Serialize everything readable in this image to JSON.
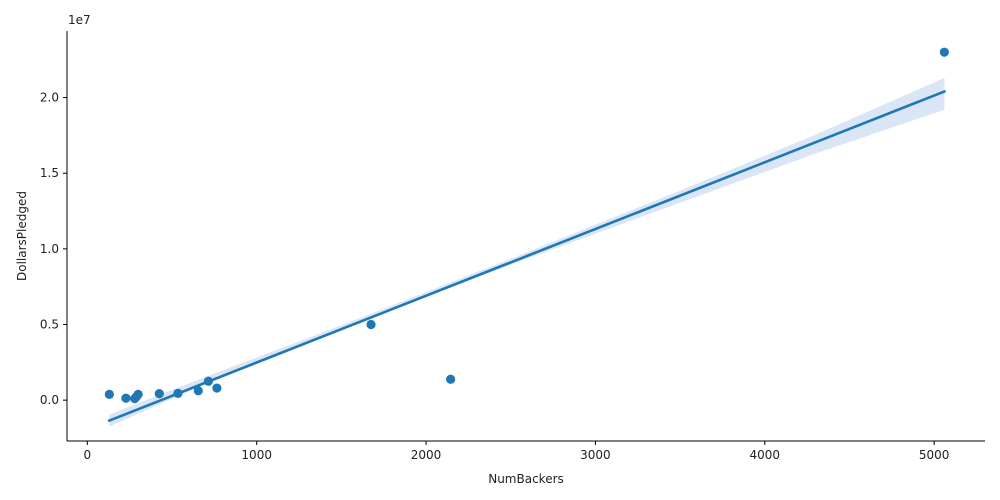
{
  "chart_data": {
    "type": "scatter",
    "xlabel": "NumBackers",
    "ylabel": "DollarsPledged",
    "y_offset_label": "1e7",
    "y_scale": 10000000,
    "xlim": [
      -120,
      5300
    ],
    "ylim": [
      -2700000,
      24400000
    ],
    "x_ticks": [
      0,
      1000,
      2000,
      3000,
      4000,
      5000
    ],
    "x_tick_labels": [
      "0",
      "1000",
      "2000",
      "3000",
      "4000",
      "5000"
    ],
    "y_ticks": [
      0,
      5000000,
      10000000,
      15000000,
      20000000
    ],
    "y_tick_labels": [
      "0.0",
      "0.5",
      "1.0",
      "1.5",
      "2.0"
    ],
    "grid": false,
    "colors": {
      "points": "#1f77b4",
      "line": "#1f77b4",
      "band": "#aec7e8"
    },
    "points": [
      {
        "x": 130,
        "y": 380000
      },
      {
        "x": 228,
        "y": 130000
      },
      {
        "x": 280,
        "y": 100000
      },
      {
        "x": 290,
        "y": 230000
      },
      {
        "x": 300,
        "y": 380000
      },
      {
        "x": 425,
        "y": 430000
      },
      {
        "x": 535,
        "y": 450000
      },
      {
        "x": 655,
        "y": 620000
      },
      {
        "x": 715,
        "y": 1250000
      },
      {
        "x": 765,
        "y": 800000
      },
      {
        "x": 1675,
        "y": 5000000
      },
      {
        "x": 2145,
        "y": 1380000
      },
      {
        "x": 5060,
        "y": 23000000
      }
    ],
    "regression": {
      "x": [
        130,
        5060
      ],
      "y": [
        -1350000,
        20400000
      ],
      "ci": [
        {
          "x": 130,
          "lo": -1750000,
          "hi": -950000
        },
        {
          "x": 700,
          "lo": 1100000,
          "hi": 1550000
        },
        {
          "x": 1500,
          "lo": 4750000,
          "hi": 4950000
        },
        {
          "x": 2500,
          "lo": 8950000,
          "hi": 9350000
        },
        {
          "x": 3500,
          "lo": 13050000,
          "hi": 13850000
        },
        {
          "x": 4300,
          "lo": 16300000,
          "hi": 17550000
        },
        {
          "x": 5060,
          "lo": 19200000,
          "hi": 21300000
        }
      ]
    }
  }
}
